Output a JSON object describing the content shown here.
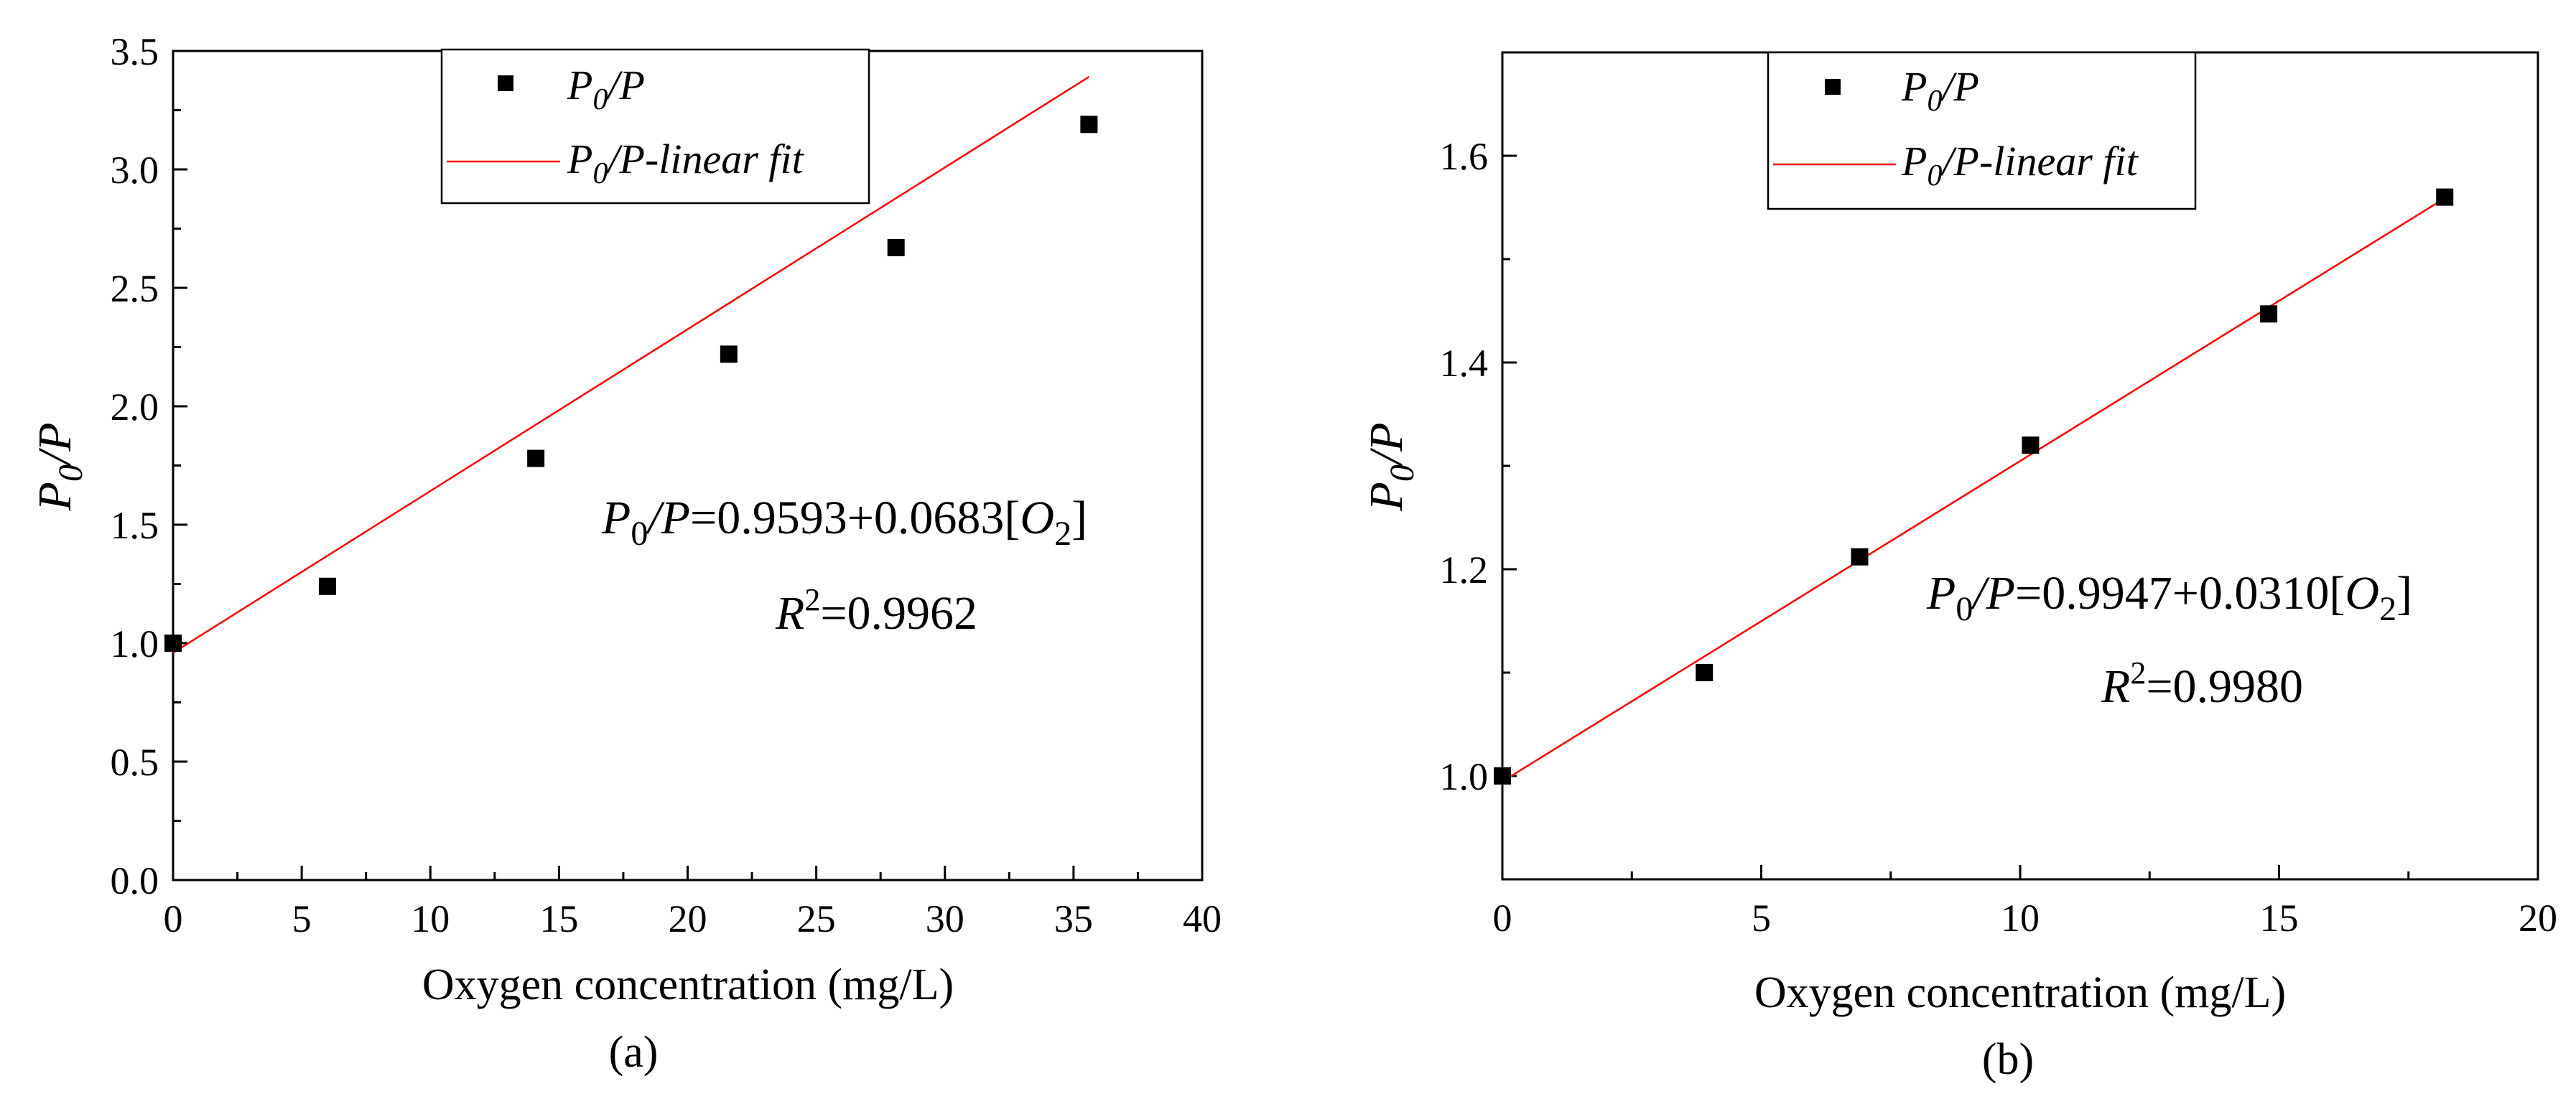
{
  "colors": {
    "fit_line": "#ff0000",
    "marker": "#000000",
    "axis": "#000000",
    "background": "#ffffff"
  },
  "chart_data": [
    {
      "type": "scatter",
      "panel_label": "(a)",
      "xlabel": "Oxygen concentration (mg/L)",
      "ylabel": {
        "base": "P",
        "sub": "0",
        "tail": "/P"
      },
      "xlim": [
        0,
        40
      ],
      "ylim": [
        0,
        3.5
      ],
      "x_ticks": [
        0,
        5,
        10,
        15,
        20,
        25,
        30,
        35,
        40
      ],
      "x_tick_labels": [
        "0",
        "5",
        "10",
        "15",
        "20",
        "25",
        "30",
        "35",
        "40"
      ],
      "y_ticks": [
        0,
        0.5,
        1.0,
        1.5,
        2.0,
        2.5,
        3.0,
        3.5
      ],
      "y_tick_labels": [
        "0.0",
        "0.5",
        "1.0",
        "1.5",
        "2.0",
        "2.5",
        "3.0",
        "3.5"
      ],
      "series": [
        {
          "name": "P0/P",
          "kind": "scatter",
          "x": [
            0,
            6.0,
            14.1,
            21.6,
            28.1,
            35.6
          ],
          "y": [
            1.0,
            1.24,
            1.78,
            2.22,
            2.67,
            3.19
          ]
        },
        {
          "name": "P0/P-linear fit",
          "kind": "line",
          "intercept": 0.9593,
          "slope": 0.0683,
          "x_range": [
            0,
            35.6
          ]
        }
      ],
      "legend": [
        {
          "base": "P",
          "sub": "0",
          "tail": "/P"
        },
        {
          "base": "P",
          "sub": "0",
          "tail": "/P-linear fit"
        }
      ],
      "legend_position": "top-center",
      "annotation": {
        "eq_base": "P",
        "eq_sub": "0",
        "eq_mid": "/P",
        "eq_values": "=0.9593+0.0683[",
        "eq_o": "O",
        "eq_osub": "2",
        "eq_close": "]",
        "r_base": "R",
        "r_sup": "2",
        "r_value": "=0.9962"
      }
    },
    {
      "type": "scatter",
      "panel_label": "(b)",
      "xlabel": "Oxygen concentration (mg/L)",
      "ylabel": {
        "base": "P",
        "sub": "0",
        "tail": "/P"
      },
      "xlim": [
        0,
        20
      ],
      "ylim": [
        0.9,
        1.7
      ],
      "x_ticks": [
        0,
        5,
        10,
        15,
        20
      ],
      "x_tick_labels": [
        "0",
        "5",
        "10",
        "15",
        "20"
      ],
      "y_ticks": [
        1.0,
        1.2,
        1.4,
        1.6
      ],
      "y_tick_labels": [
        "1.0",
        "1.2",
        "1.4",
        "1.6"
      ],
      "series": [
        {
          "name": "P0/P",
          "kind": "scatter",
          "x": [
            0,
            3.9,
            6.9,
            10.2,
            14.8,
            18.2
          ],
          "y": [
            1.0,
            1.1,
            1.212,
            1.32,
            1.447,
            1.56
          ]
        },
        {
          "name": "P0/P-linear fit",
          "kind": "line",
          "intercept": 0.9947,
          "slope": 0.031,
          "x_range": [
            0,
            18.2
          ]
        }
      ],
      "legend": [
        {
          "base": "P",
          "sub": "0",
          "tail": "/P"
        },
        {
          "base": "P",
          "sub": "0",
          "tail": "/P-linear fit"
        }
      ],
      "legend_position": "top-center",
      "annotation": {
        "eq_base": "P",
        "eq_sub": "0",
        "eq_mid": "/P",
        "eq_values": "=0.9947+0.0310[",
        "eq_o": "O",
        "eq_osub": "2",
        "eq_close": "]",
        "r_base": "R",
        "r_sup": "2",
        "r_value": "=0.9980"
      }
    }
  ]
}
